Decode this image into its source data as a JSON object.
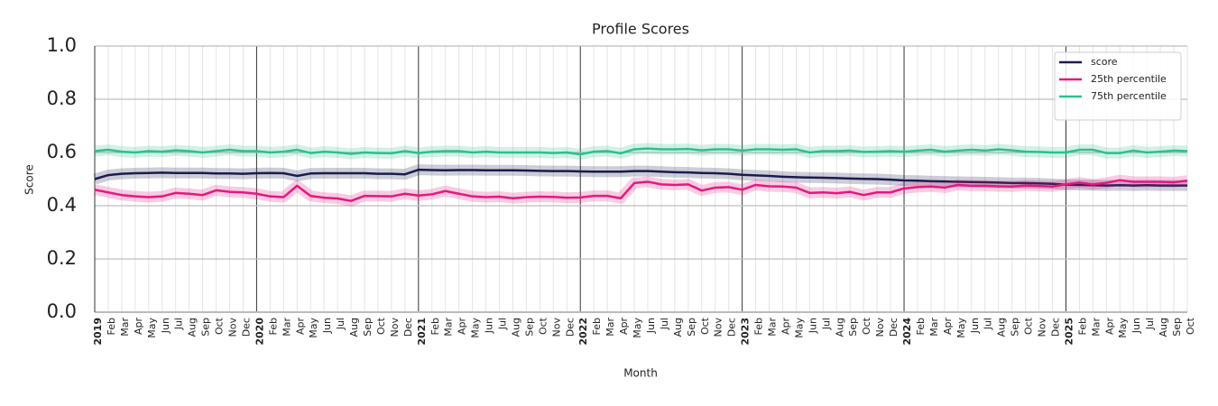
{
  "chart_data": {
    "type": "line",
    "title": "Profile Scores",
    "x_label": "Month",
    "y_label": "Score",
    "categories": [
      "2019",
      "Feb",
      "Mar",
      "Apr",
      "May",
      "Jun",
      "Jul",
      "Aug",
      "Sep",
      "Oct",
      "Nov",
      "Dec",
      "2020",
      "Feb",
      "Mar",
      "Apr",
      "May",
      "Jun",
      "Jul",
      "Aug",
      "Sep",
      "Oct",
      "Nov",
      "Dec",
      "2021",
      "Feb",
      "Mar",
      "Apr",
      "May",
      "Jun",
      "Jul",
      "Aug",
      "Sep",
      "Oct",
      "Nov",
      "Dec",
      "2022",
      "Feb",
      "Mar",
      "Apr",
      "May",
      "Jun",
      "Jul",
      "Aug",
      "Sep",
      "Oct",
      "Nov",
      "Dec",
      "2023",
      "Feb",
      "Mar",
      "Apr",
      "May",
      "Jun",
      "Jul",
      "Aug",
      "Sep",
      "Oct",
      "Nov",
      "Dec",
      "2024",
      "Feb",
      "Mar",
      "Apr",
      "May",
      "Jun",
      "Jul",
      "Aug",
      "Sep",
      "Oct",
      "Nov",
      "Dec",
      "2025",
      "Feb",
      "Mar",
      "Apr",
      "May",
      "Jun",
      "Jul",
      "Aug",
      "Sep",
      "Oct"
    ],
    "series": [
      {
        "name": "score",
        "color": "#1b1a4f",
        "values": [
          0.5,
          0.515,
          0.52,
          0.522,
          0.523,
          0.524,
          0.523,
          0.523,
          0.523,
          0.521,
          0.521,
          0.52,
          0.522,
          0.523,
          0.522,
          0.512,
          0.521,
          0.522,
          0.522,
          0.522,
          0.522,
          0.52,
          0.52,
          0.518,
          0.535,
          0.534,
          0.533,
          0.534,
          0.534,
          0.533,
          0.533,
          0.533,
          0.532,
          0.531,
          0.53,
          0.53,
          0.529,
          0.528,
          0.528,
          0.528,
          0.53,
          0.53,
          0.528,
          0.526,
          0.525,
          0.523,
          0.522,
          0.52,
          0.516,
          0.514,
          0.512,
          0.509,
          0.507,
          0.506,
          0.505,
          0.504,
          0.502,
          0.501,
          0.5,
          0.498,
          0.495,
          0.494,
          0.492,
          0.491,
          0.49,
          0.489,
          0.488,
          0.487,
          0.485,
          0.485,
          0.484,
          0.482,
          0.479,
          0.478,
          0.477,
          0.476,
          0.477,
          0.476,
          0.477,
          0.476,
          0.476,
          0.476
        ]
      },
      {
        "name": "25th percentile",
        "color": "#e5187f",
        "values": [
          0.46,
          0.45,
          0.44,
          0.435,
          0.432,
          0.435,
          0.448,
          0.445,
          0.44,
          0.458,
          0.452,
          0.45,
          0.445,
          0.435,
          0.432,
          0.475,
          0.437,
          0.43,
          0.427,
          0.418,
          0.437,
          0.436,
          0.435,
          0.445,
          0.438,
          0.443,
          0.455,
          0.445,
          0.435,
          0.432,
          0.434,
          0.428,
          0.432,
          0.434,
          0.433,
          0.43,
          0.431,
          0.437,
          0.437,
          0.428,
          0.485,
          0.49,
          0.48,
          0.478,
          0.48,
          0.457,
          0.468,
          0.47,
          0.46,
          0.478,
          0.473,
          0.472,
          0.468,
          0.448,
          0.45,
          0.447,
          0.452,
          0.44,
          0.45,
          0.45,
          0.465,
          0.47,
          0.472,
          0.468,
          0.478,
          0.475,
          0.475,
          0.473,
          0.472,
          0.476,
          0.474,
          0.472,
          0.48,
          0.487,
          0.48,
          0.486,
          0.496,
          0.49,
          0.49,
          0.49,
          0.488,
          0.494
        ]
      },
      {
        "name": "75th percentile",
        "color": "#2dc08b",
        "values": [
          0.605,
          0.61,
          0.603,
          0.6,
          0.605,
          0.603,
          0.608,
          0.605,
          0.6,
          0.605,
          0.61,
          0.605,
          0.605,
          0.6,
          0.603,
          0.61,
          0.598,
          0.603,
          0.6,
          0.595,
          0.6,
          0.598,
          0.597,
          0.605,
          0.598,
          0.603,
          0.605,
          0.605,
          0.6,
          0.603,
          0.6,
          0.6,
          0.6,
          0.6,
          0.598,
          0.6,
          0.593,
          0.603,
          0.605,
          0.597,
          0.612,
          0.615,
          0.612,
          0.612,
          0.613,
          0.608,
          0.612,
          0.612,
          0.607,
          0.612,
          0.612,
          0.61,
          0.612,
          0.6,
          0.605,
          0.605,
          0.607,
          0.602,
          0.603,
          0.605,
          0.603,
          0.607,
          0.61,
          0.603,
          0.607,
          0.61,
          0.607,
          0.612,
          0.608,
          0.603,
          0.602,
          0.6,
          0.6,
          0.61,
          0.61,
          0.598,
          0.598,
          0.607,
          0.6,
          0.603,
          0.607,
          0.605
        ]
      }
    ],
    "ylim": [
      0,
      1
    ],
    "yticks": [
      {
        "value": 0,
        "label": "0.0"
      },
      {
        "value": 0.2,
        "label": "0.2"
      },
      {
        "value": 0.4,
        "label": "0.4"
      },
      {
        "value": 0.6,
        "label": "0.6"
      },
      {
        "value": 0.8,
        "label": "0.8"
      },
      {
        "value": 1,
        "label": "1.0"
      }
    ],
    "grid": true,
    "legend": "upper right"
  }
}
